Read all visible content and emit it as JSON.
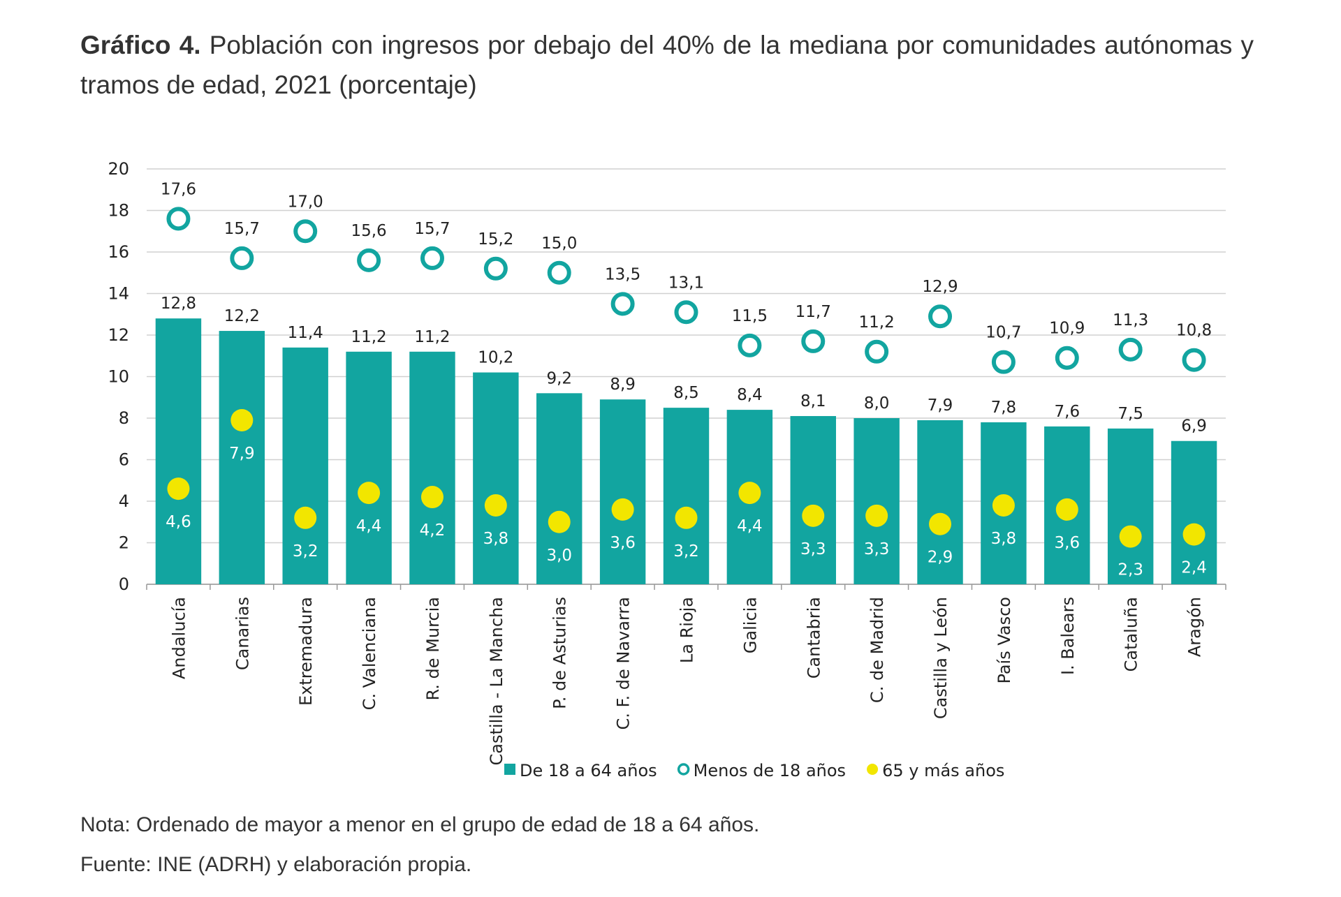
{
  "title": {
    "label": "Gráfico 4.",
    "text": "Población con ingresos por debajo del 40% de la mediana por comunidades autónomas y tramos de edad, 2021 (porcentaje)"
  },
  "notes": {
    "nota": "Nota: Ordenado de mayor a menor en el grupo de edad de 18 a 64 años.",
    "fuente": "Fuente: INE (ADRH) y elaboración propia."
  },
  "colors": {
    "bar": "#12a5a0",
    "ring": "#12a5a0",
    "dot": "#f2e600",
    "grid": "#d0d0d0",
    "axis_text": "#222222"
  },
  "chart_data": {
    "type": "bar",
    "ylim": [
      0,
      20
    ],
    "yticks": [
      "0",
      "2",
      "4",
      "6",
      "8",
      "10",
      "12",
      "14",
      "16",
      "18",
      "20"
    ],
    "grid": true,
    "legend_position": "bottom",
    "categories": [
      "Andalucía",
      "Canarias",
      "Extremadura",
      "C. Valenciana",
      "R. de Murcia",
      "Castilla - La Mancha",
      "P. de Asturias",
      "C. F. de Navarra",
      "La Rioja",
      "Galicia",
      "Cantabria",
      "C. de Madrid",
      "Castilla y León",
      "País Vasco",
      "I. Balears",
      "Cataluña",
      "Aragón"
    ],
    "series": [
      {
        "name": "De 18 a 64 años",
        "mark": "bar",
        "values": [
          12.8,
          12.2,
          11.4,
          11.2,
          11.2,
          10.2,
          9.2,
          8.9,
          8.5,
          8.4,
          8.1,
          8.0,
          7.9,
          7.8,
          7.6,
          7.5,
          6.9
        ],
        "labels": [
          "12,8",
          "12,2",
          "11,4",
          "11,2",
          "11,2",
          "10,2",
          "9,2",
          "8,9",
          "8,5",
          "8,4",
          "8,1",
          "8,0",
          "7,9",
          "7,8",
          "7,6",
          "7,5",
          "6,9"
        ]
      },
      {
        "name": "Menos de 18 años",
        "mark": "ring",
        "values": [
          17.6,
          15.7,
          17.0,
          15.6,
          15.7,
          15.2,
          15.0,
          13.5,
          13.1,
          11.5,
          11.7,
          11.2,
          12.9,
          10.7,
          10.9,
          11.3,
          10.8
        ],
        "labels": [
          "17,6",
          "15,7",
          "17,0",
          "15,6",
          "15,7",
          "15,2",
          "15,0",
          "13,5",
          "13,1",
          "11,5",
          "11,7",
          "11,2",
          "12,9",
          "10,7",
          "10,9",
          "11,3",
          "10,8"
        ]
      },
      {
        "name": "65 y más años",
        "mark": "dot",
        "values": [
          4.6,
          7.9,
          3.2,
          4.4,
          4.2,
          3.8,
          3.0,
          3.6,
          3.2,
          4.4,
          3.3,
          3.3,
          2.9,
          3.8,
          3.6,
          2.3,
          2.4
        ],
        "labels": [
          "4,6",
          "7,9",
          "3,2",
          "4,4",
          "4,2",
          "3,8",
          "3,0",
          "3,6",
          "3,2",
          "4,4",
          "3,3",
          "3,3",
          "2,9",
          "3,8",
          "3,6",
          "2,3",
          "2,4"
        ]
      }
    ]
  }
}
